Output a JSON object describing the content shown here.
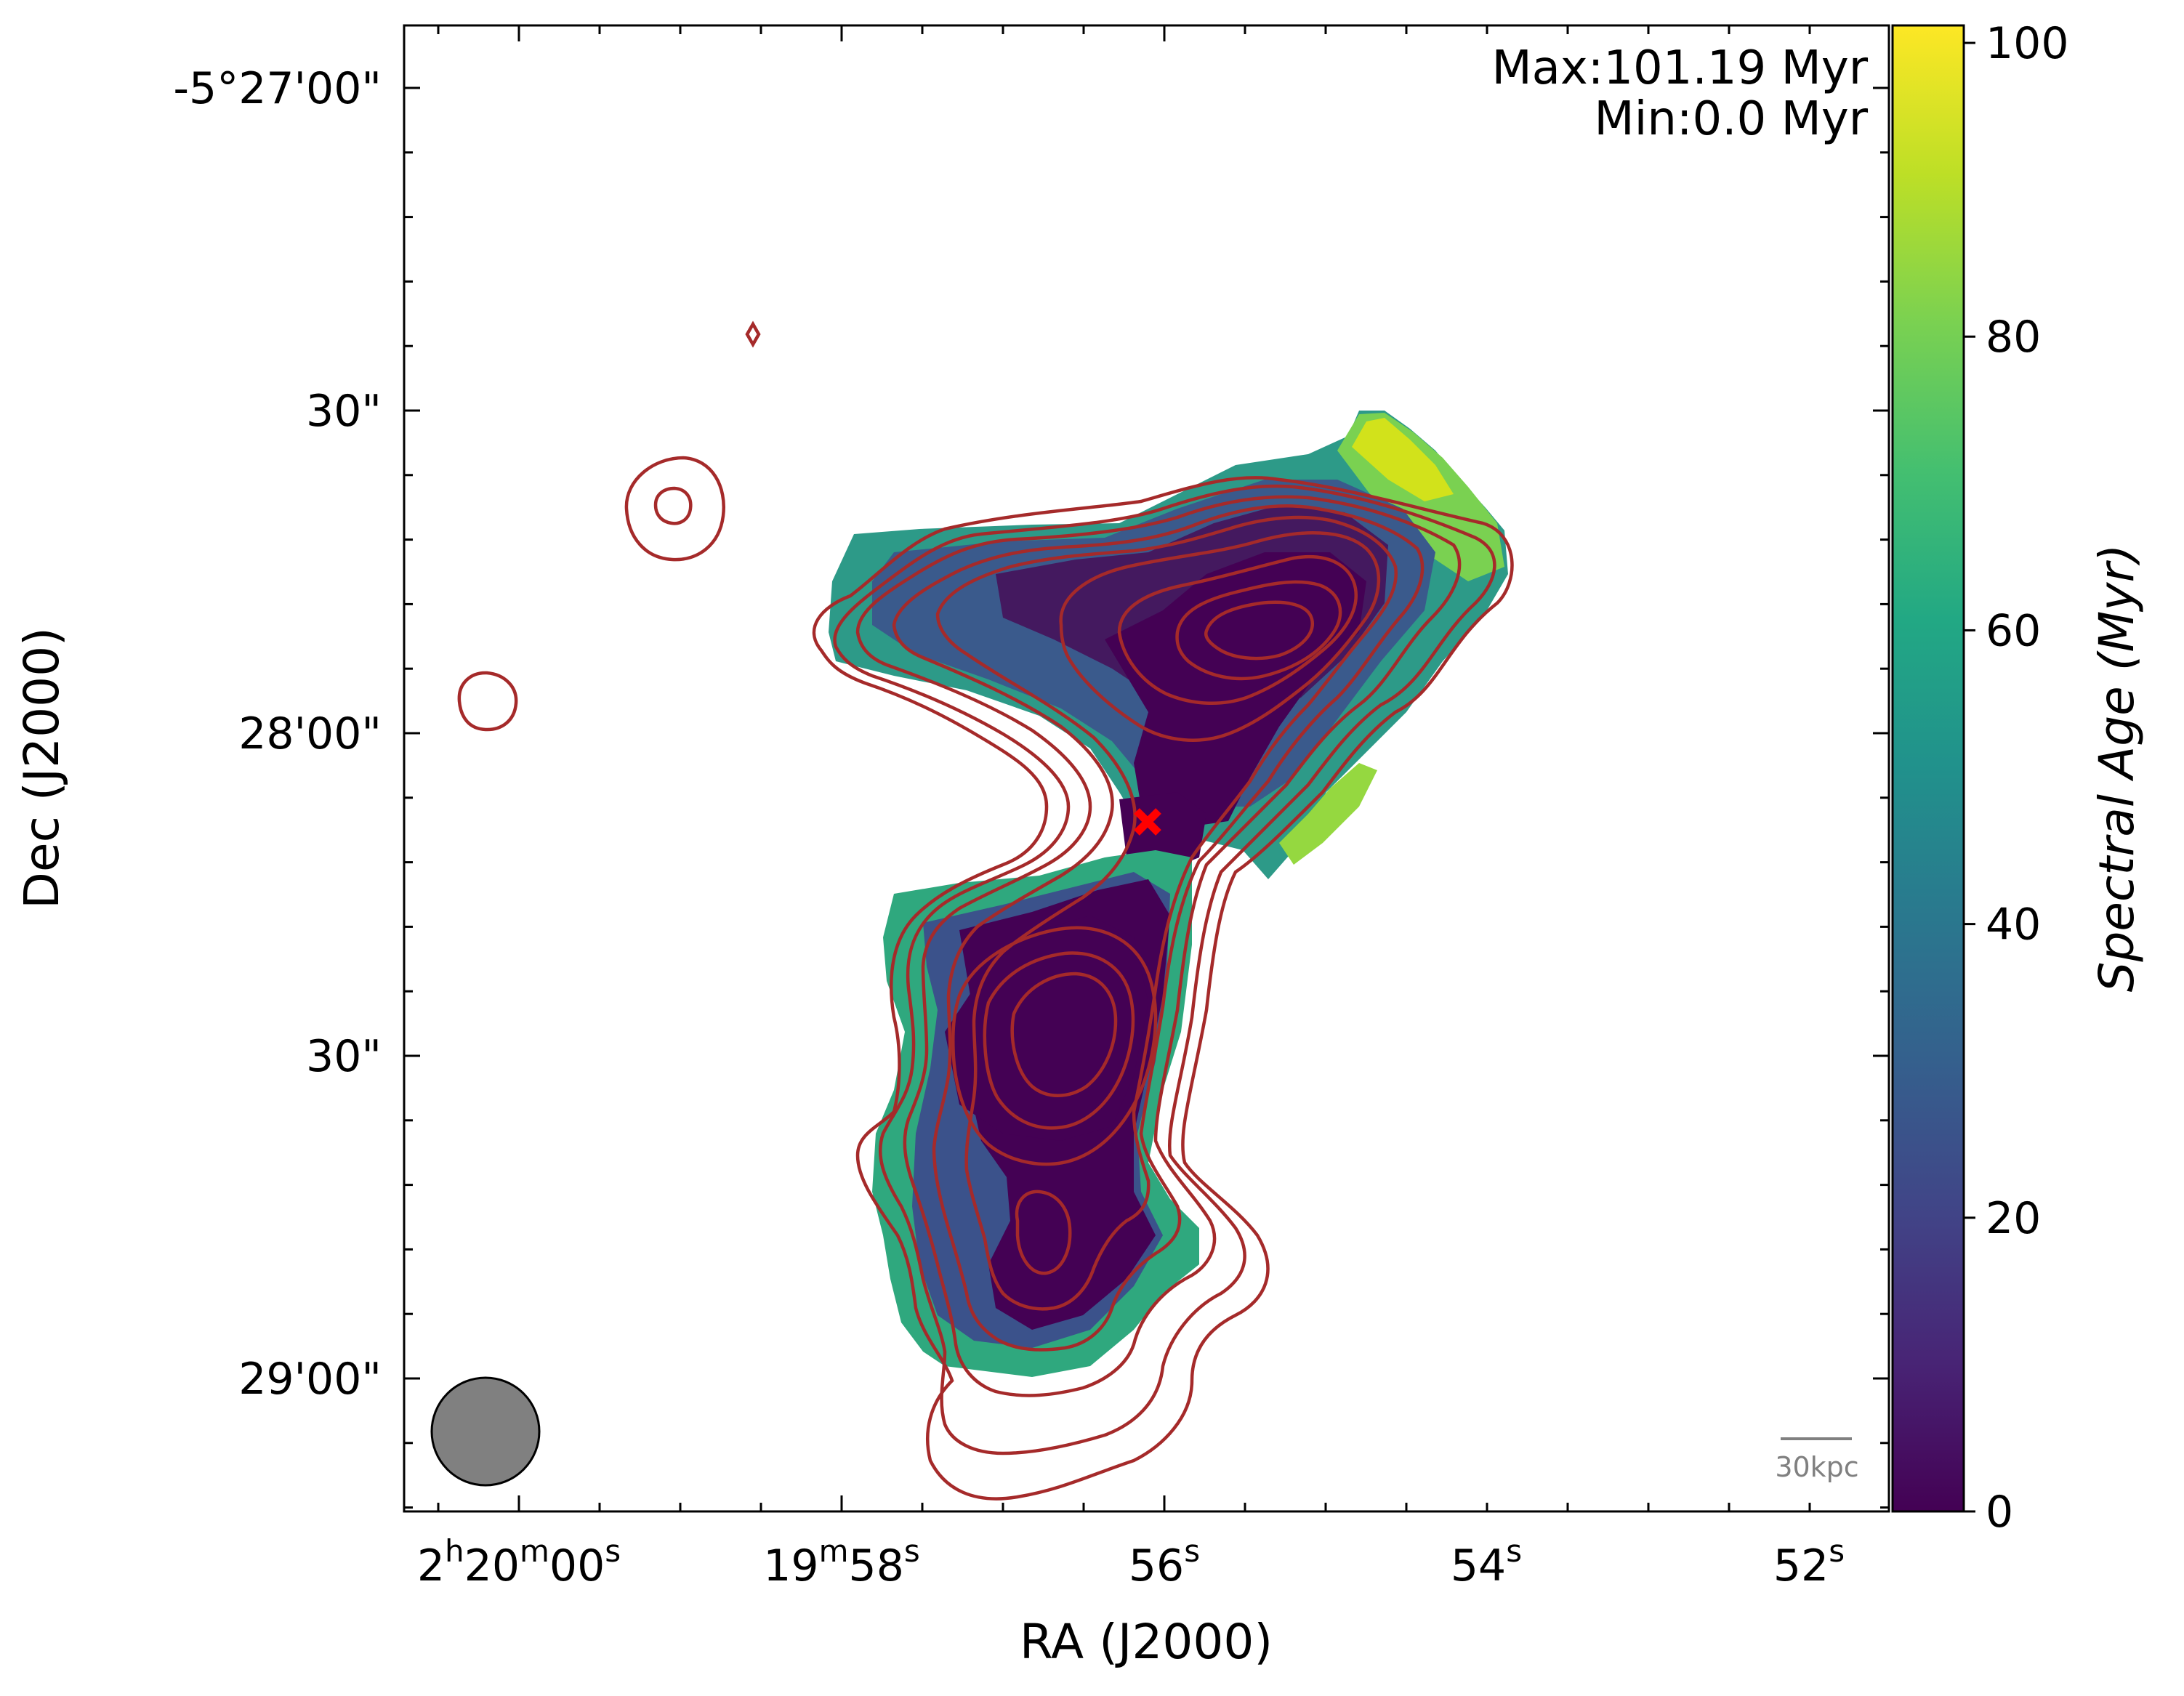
{
  "chart_data": {
    "type": "heatmap",
    "title": "",
    "xlabel": "RA (J2000)",
    "ylabel": "Dec (J2000)",
    "colorbar_label": "Spectral Age (Myr)",
    "colormap": "viridis",
    "colorbar_range": [
      0,
      101.19
    ],
    "colorbar_ticks": [
      0,
      20,
      40,
      60,
      80,
      100
    ],
    "grid": false,
    "x_ticks": [
      {
        "sexagesimal": "02:20:00",
        "prefix": "2",
        "h": "h",
        "mid1": "20",
        "m": "m",
        "mid2": "00",
        "s": "s"
      },
      {
        "sexagesimal": "02:19:58",
        "prefix": "",
        "h": "",
        "mid1": "19",
        "m": "m",
        "mid2": "58",
        "s": "s"
      },
      {
        "sexagesimal": "02:19:56",
        "prefix": "",
        "h": "",
        "mid1": "",
        "m": "",
        "mid2": "56",
        "s": "s"
      },
      {
        "sexagesimal": "02:19:54",
        "prefix": "",
        "h": "",
        "mid1": "",
        "m": "",
        "mid2": "54",
        "s": "s"
      },
      {
        "sexagesimal": "02:19:52",
        "prefix": "",
        "h": "",
        "mid1": "",
        "m": "",
        "mid2": "52",
        "s": "s"
      }
    ],
    "y_ticks": [
      {
        "sexagesimal": "-05:27:00",
        "label": "-5°27'00\""
      },
      {
        "sexagesimal": "-05:27:30",
        "label": "30\""
      },
      {
        "sexagesimal": "-05:28:00",
        "label": "28'00\""
      },
      {
        "sexagesimal": "-05:28:30",
        "label": "30\""
      },
      {
        "sexagesimal": "-05:29:00",
        "label": "29'00\""
      }
    ],
    "annotations": {
      "max_text": "Max:101.19 Myr",
      "min_text": "Min:0.0 Myr",
      "scalebar_label": "30kpc",
      "core_marker": "red-x-marker",
      "beam": "beam-ellipse"
    },
    "colors": {
      "contour": "#a52a2a",
      "core_marker": "#ff0000",
      "beam_fill": "#808080",
      "scalebar": "#808080"
    }
  }
}
